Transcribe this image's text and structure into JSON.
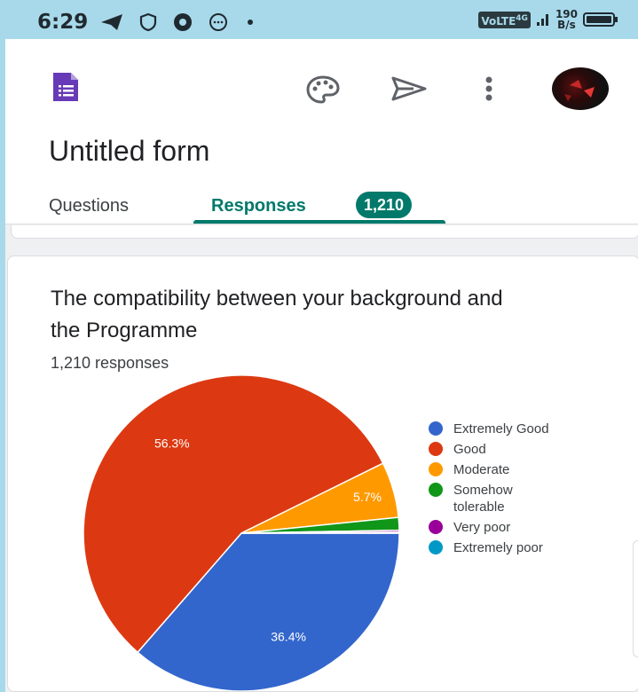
{
  "status_bar": {
    "time": "6:29",
    "network_label": "VoLTE",
    "network_gen": "4G",
    "speed_value": "190",
    "speed_unit": "B/s"
  },
  "app": {
    "form_title": "Untitled form",
    "tabs": [
      {
        "label": "Questions"
      },
      {
        "label": "Responses",
        "badge": "1,210"
      }
    ],
    "icons": [
      "forms-icon",
      "palette-icon",
      "send-icon",
      "more-vert-icon",
      "avatar"
    ],
    "accent_color": "#00796b"
  },
  "question": {
    "title": "The compatibility between your background and the Programme",
    "responses_text": "1,210 responses"
  },
  "chart_data": {
    "type": "pie",
    "title": "The compatibility between your background and the Programme",
    "legend_position": "right",
    "series": [
      {
        "name": "Extremely Good",
        "value": 36.4,
        "label": "36.4%",
        "color": "#3366cc"
      },
      {
        "name": "Good",
        "value": 56.3,
        "label": "56.3%",
        "color": "#dc3912"
      },
      {
        "name": "Moderate",
        "value": 5.7,
        "label": "5.7%",
        "color": "#ff9900"
      },
      {
        "name": "Somehow tolerable",
        "value": 1.3,
        "label": "",
        "color": "#109618"
      },
      {
        "name": "Very poor",
        "value": 0.2,
        "label": "",
        "color": "#990099"
      },
      {
        "name": "Extremely poor",
        "value": 0.1,
        "label": "",
        "color": "#0099c6"
      }
    ]
  }
}
